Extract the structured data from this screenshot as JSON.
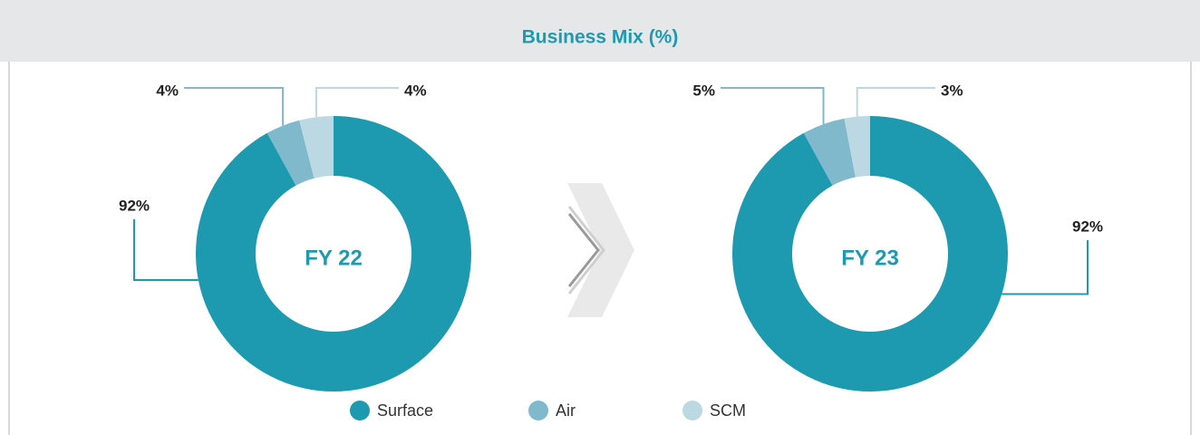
{
  "title": "Business Mix (%)",
  "chart_data": [
    {
      "type": "donut",
      "label": "FY 22",
      "categories": [
        "Surface",
        "Air",
        "SCM"
      ],
      "values": [
        92,
        4,
        4
      ],
      "value_labels": [
        "92%",
        "4%",
        "4%"
      ],
      "colors": [
        "#1e9ab0",
        "#7fb9cb",
        "#bcd9e3"
      ]
    },
    {
      "type": "donut",
      "label": "FY 23",
      "categories": [
        "Surface",
        "Air",
        "SCM"
      ],
      "values": [
        92,
        5,
        3
      ],
      "value_labels": [
        "92%",
        "5%",
        "3%"
      ],
      "colors": [
        "#1e9ab0",
        "#7fb9cb",
        "#bcd9e3"
      ]
    }
  ]
}
